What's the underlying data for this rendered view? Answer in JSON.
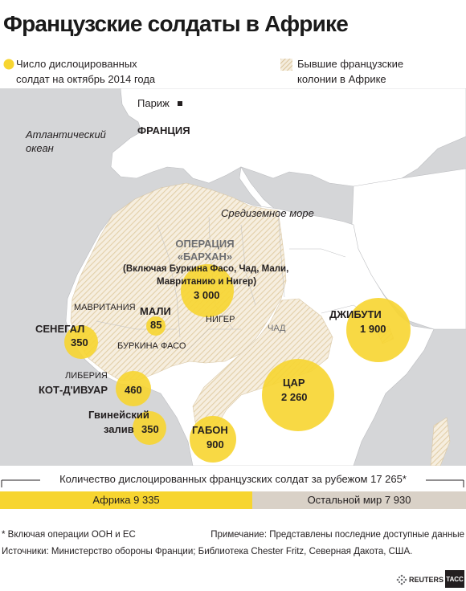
{
  "title": "Французские солдаты в Африке",
  "legend": {
    "deployed_line1": "Число дислоцированных",
    "deployed_line2": "солдат на октябрь 2014 года",
    "colonies_line1": "Бывшие французские",
    "colonies_line2": "колонии в Африке"
  },
  "map_labels": {
    "paris": "Париж",
    "france": "ФРАНЦИЯ",
    "atlantic_line1": "Атлантический",
    "atlantic_line2": "океан",
    "mediterranean": "Средиземное море",
    "mauritania": "МАВРИТАНИЯ",
    "niger": "НИГЕР",
    "chad": "ЧАД",
    "burkina": "БУРКИНА ФАСО",
    "liberia": "ЛИБЕРИЯ"
  },
  "operation": {
    "title_line1": "ОПЕРАЦИЯ",
    "title_line2": "«БАРХАН»",
    "note_line1": "(Включая Буркина Фасо, Чад, Мали,",
    "note_line2": "Мавританию и Нигер)",
    "value": "3 000"
  },
  "deployments": [
    {
      "name": "МАЛИ",
      "value": "85"
    },
    {
      "name": "СЕНЕГАЛ",
      "value": "350"
    },
    {
      "name": "КОТ-Д'ИВУАР",
      "value": "460"
    },
    {
      "name_line1": "Гвинейский",
      "name_line2": "залив",
      "value": "350"
    },
    {
      "name": "ГАБОН",
      "value": "900"
    },
    {
      "name": "ЦАР",
      "value": "2 260"
    },
    {
      "name": "ДЖИБУТИ",
      "value": "1 900"
    }
  ],
  "totals": {
    "caption": "Количество дислоцированных французских солдат за рубежом 17 265*",
    "africa_label": "Африка 9 335",
    "africa_value": 9335,
    "rest_label": "Остальной мир 7 930",
    "rest_value": 7930
  },
  "footnote": "* Включая операции ООН и ЕС",
  "note": "Примечание: Представлены последние доступные данные",
  "sources": "Источники: Министерство обороны Франции; Библиотека Chester Fritz, Северная Дакота, США.",
  "brand": {
    "reuters": "REUTERS",
    "tass": "ТАСС"
  },
  "colors": {
    "sea": "#d5d6d8",
    "land": "#ffffff",
    "circle": "#f7d530",
    "hatch": "#e8d8b8",
    "africa_bar": "#f7d530",
    "rest_bar": "#d9d1c7"
  }
}
